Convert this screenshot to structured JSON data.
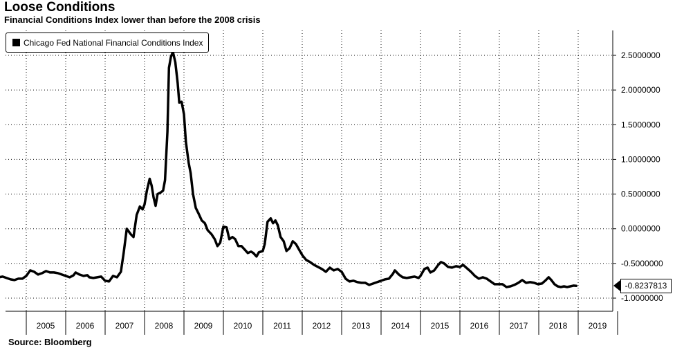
{
  "title": "Loose Conditions",
  "subtitle": "Financial Conditions Index lower than before the 2008 crisis",
  "source": "Source:  Bloomberg",
  "chart_data": {
    "type": "line",
    "ylim": [
      -1.2,
      2.65
    ],
    "xlim": [
      2004.3,
      2019.85
    ],
    "y_ticks": [
      2.5,
      2.0,
      1.5,
      1.0,
      0.5,
      0.0,
      -0.5,
      -1.0
    ],
    "y_tick_labels": [
      "2.5000000",
      "2.0000000",
      "1.5000000",
      "1.0000000",
      "0.5000000",
      "0.0000000",
      "-0.5000000",
      "-1.0000000"
    ],
    "x_ticks": [
      2005,
      2006,
      2007,
      2008,
      2009,
      2010,
      2011,
      2012,
      2013,
      2014,
      2015,
      2016,
      2017,
      2018,
      2019
    ],
    "x_tick_labels": [
      "2005",
      "2006",
      "2007",
      "2008",
      "2009",
      "2010",
      "2011",
      "2012",
      "2013",
      "2014",
      "2015",
      "2016",
      "2017",
      "2018",
      "2019"
    ],
    "grid": true,
    "legend_position": "top-left",
    "last_value_label": "-0.8237813",
    "colors": {
      "line": "#000000",
      "grid": "#000000",
      "background": "#ffffff"
    },
    "series": [
      {
        "name": "Chicago Fed National Financial Conditions Index",
        "points": [
          [
            2004.3,
            -0.7
          ],
          [
            2004.4,
            -0.69
          ],
          [
            2004.5,
            -0.71
          ],
          [
            2004.6,
            -0.73
          ],
          [
            2004.7,
            -0.74
          ],
          [
            2004.8,
            -0.72
          ],
          [
            2004.9,
            -0.72
          ],
          [
            2005.0,
            -0.68
          ],
          [
            2005.1,
            -0.6
          ],
          [
            2005.2,
            -0.62
          ],
          [
            2005.3,
            -0.66
          ],
          [
            2005.4,
            -0.64
          ],
          [
            2005.5,
            -0.61
          ],
          [
            2005.6,
            -0.63
          ],
          [
            2005.7,
            -0.63
          ],
          [
            2005.8,
            -0.64
          ],
          [
            2005.9,
            -0.66
          ],
          [
            2006.0,
            -0.68
          ],
          [
            2006.1,
            -0.7
          ],
          [
            2006.2,
            -0.67
          ],
          [
            2006.25,
            -0.63
          ],
          [
            2006.35,
            -0.66
          ],
          [
            2006.45,
            -0.68
          ],
          [
            2006.55,
            -0.67
          ],
          [
            2006.6,
            -0.7
          ],
          [
            2006.7,
            -0.71
          ],
          [
            2006.8,
            -0.7
          ],
          [
            2006.9,
            -0.69
          ],
          [
            2007.0,
            -0.75
          ],
          [
            2007.1,
            -0.76
          ],
          [
            2007.2,
            -0.68
          ],
          [
            2007.3,
            -0.7
          ],
          [
            2007.4,
            -0.62
          ],
          [
            2007.47,
            -0.35
          ],
          [
            2007.55,
            0.0
          ],
          [
            2007.65,
            -0.08
          ],
          [
            2007.72,
            -0.12
          ],
          [
            2007.8,
            0.2
          ],
          [
            2007.88,
            0.32
          ],
          [
            2007.95,
            0.28
          ],
          [
            2008.0,
            0.35
          ],
          [
            2008.06,
            0.55
          ],
          [
            2008.13,
            0.72
          ],
          [
            2008.18,
            0.62
          ],
          [
            2008.23,
            0.45
          ],
          [
            2008.28,
            0.33
          ],
          [
            2008.33,
            0.5
          ],
          [
            2008.4,
            0.52
          ],
          [
            2008.47,
            0.55
          ],
          [
            2008.52,
            0.7
          ],
          [
            2008.58,
            1.4
          ],
          [
            2008.62,
            2.32
          ],
          [
            2008.67,
            2.48
          ],
          [
            2008.72,
            2.55
          ],
          [
            2008.78,
            2.4
          ],
          [
            2008.84,
            2.1
          ],
          [
            2008.88,
            1.82
          ],
          [
            2008.94,
            1.83
          ],
          [
            2009.0,
            1.65
          ],
          [
            2009.05,
            1.25
          ],
          [
            2009.12,
            0.95
          ],
          [
            2009.17,
            0.8
          ],
          [
            2009.23,
            0.5
          ],
          [
            2009.3,
            0.3
          ],
          [
            2009.37,
            0.22
          ],
          [
            2009.45,
            0.12
          ],
          [
            2009.53,
            0.08
          ],
          [
            2009.6,
            -0.02
          ],
          [
            2009.7,
            -0.08
          ],
          [
            2009.78,
            -0.15
          ],
          [
            2009.85,
            -0.25
          ],
          [
            2009.92,
            -0.2
          ],
          [
            2010.0,
            0.03
          ],
          [
            2010.08,
            0.02
          ],
          [
            2010.15,
            -0.15
          ],
          [
            2010.23,
            -0.12
          ],
          [
            2010.3,
            -0.15
          ],
          [
            2010.38,
            -0.25
          ],
          [
            2010.46,
            -0.25
          ],
          [
            2010.54,
            -0.3
          ],
          [
            2010.62,
            -0.35
          ],
          [
            2010.7,
            -0.33
          ],
          [
            2010.76,
            -0.35
          ],
          [
            2010.84,
            -0.4
          ],
          [
            2010.9,
            -0.34
          ],
          [
            2011.0,
            -0.32
          ],
          [
            2011.05,
            -0.22
          ],
          [
            2011.12,
            0.1
          ],
          [
            2011.2,
            0.15
          ],
          [
            2011.26,
            0.08
          ],
          [
            2011.32,
            0.12
          ],
          [
            2011.38,
            0.05
          ],
          [
            2011.45,
            -0.12
          ],
          [
            2011.53,
            -0.18
          ],
          [
            2011.6,
            -0.32
          ],
          [
            2011.68,
            -0.28
          ],
          [
            2011.76,
            -0.18
          ],
          [
            2011.84,
            -0.22
          ],
          [
            2011.92,
            -0.3
          ],
          [
            2012.0,
            -0.38
          ],
          [
            2012.1,
            -0.45
          ],
          [
            2012.2,
            -0.48
          ],
          [
            2012.3,
            -0.52
          ],
          [
            2012.4,
            -0.55
          ],
          [
            2012.5,
            -0.58
          ],
          [
            2012.6,
            -0.62
          ],
          [
            2012.7,
            -0.56
          ],
          [
            2012.8,
            -0.6
          ],
          [
            2012.9,
            -0.58
          ],
          [
            2013.0,
            -0.62
          ],
          [
            2013.1,
            -0.72
          ],
          [
            2013.2,
            -0.76
          ],
          [
            2013.3,
            -0.75
          ],
          [
            2013.4,
            -0.77
          ],
          [
            2013.5,
            -0.78
          ],
          [
            2013.6,
            -0.78
          ],
          [
            2013.7,
            -0.81
          ],
          [
            2013.8,
            -0.79
          ],
          [
            2013.9,
            -0.77
          ],
          [
            2014.0,
            -0.75
          ],
          [
            2014.1,
            -0.73
          ],
          [
            2014.2,
            -0.72
          ],
          [
            2014.3,
            -0.65
          ],
          [
            2014.35,
            -0.6
          ],
          [
            2014.45,
            -0.66
          ],
          [
            2014.55,
            -0.7
          ],
          [
            2014.65,
            -0.71
          ],
          [
            2014.75,
            -0.7
          ],
          [
            2014.85,
            -0.69
          ],
          [
            2014.95,
            -0.71
          ],
          [
            2015.0,
            -0.68
          ],
          [
            2015.1,
            -0.58
          ],
          [
            2015.18,
            -0.56
          ],
          [
            2015.25,
            -0.63
          ],
          [
            2015.35,
            -0.6
          ],
          [
            2015.45,
            -0.52
          ],
          [
            2015.52,
            -0.48
          ],
          [
            2015.6,
            -0.5
          ],
          [
            2015.7,
            -0.55
          ],
          [
            2015.8,
            -0.56
          ],
          [
            2015.9,
            -0.54
          ],
          [
            2016.0,
            -0.55
          ],
          [
            2016.08,
            -0.52
          ],
          [
            2016.18,
            -0.57
          ],
          [
            2016.28,
            -0.62
          ],
          [
            2016.38,
            -0.68
          ],
          [
            2016.48,
            -0.72
          ],
          [
            2016.58,
            -0.7
          ],
          [
            2016.68,
            -0.72
          ],
          [
            2016.78,
            -0.76
          ],
          [
            2016.88,
            -0.8
          ],
          [
            2016.98,
            -0.8
          ],
          [
            2017.08,
            -0.8
          ],
          [
            2017.18,
            -0.84
          ],
          [
            2017.28,
            -0.83
          ],
          [
            2017.38,
            -0.81
          ],
          [
            2017.48,
            -0.78
          ],
          [
            2017.58,
            -0.74
          ],
          [
            2017.68,
            -0.78
          ],
          [
            2017.78,
            -0.77
          ],
          [
            2017.88,
            -0.78
          ],
          [
            2017.98,
            -0.8
          ],
          [
            2018.08,
            -0.79
          ],
          [
            2018.18,
            -0.74
          ],
          [
            2018.25,
            -0.7
          ],
          [
            2018.32,
            -0.74
          ],
          [
            2018.4,
            -0.8
          ],
          [
            2018.48,
            -0.83
          ],
          [
            2018.56,
            -0.84
          ],
          [
            2018.64,
            -0.83
          ],
          [
            2018.72,
            -0.84
          ],
          [
            2018.8,
            -0.83
          ],
          [
            2018.88,
            -0.82
          ],
          [
            2018.95,
            -0.823
          ]
        ]
      }
    ]
  }
}
